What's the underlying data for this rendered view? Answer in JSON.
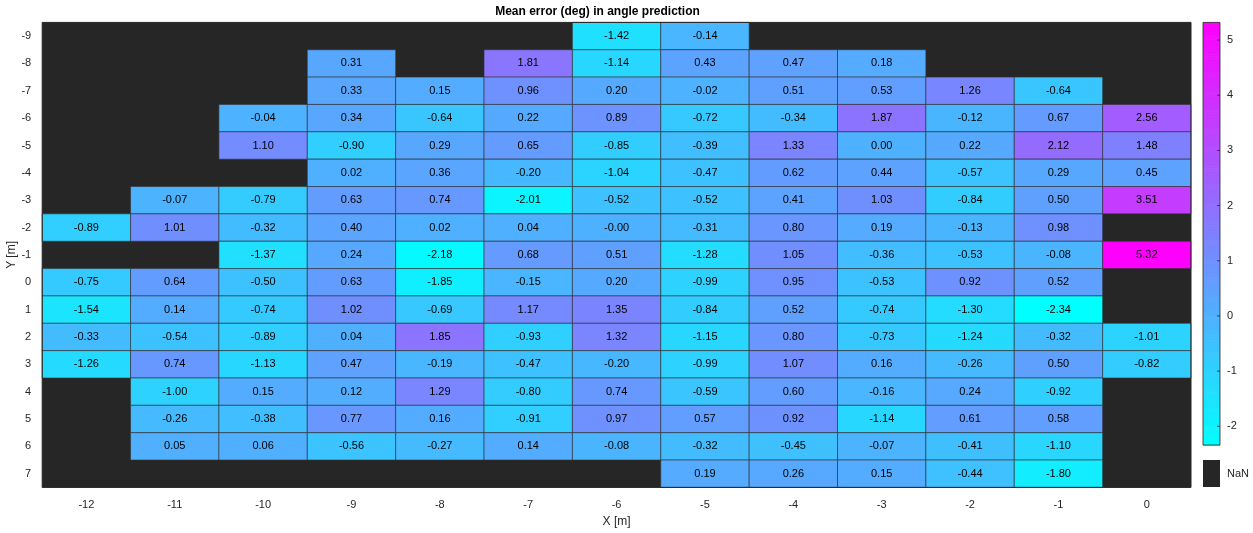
{
  "chart_data": {
    "type": "heatmap",
    "title": "Mean error (deg) in angle prediction",
    "xlabel": "X [m]",
    "ylabel": "Y [m]",
    "categories": [
      "-12",
      "-11",
      "-10",
      "-9",
      "-8",
      "-7",
      "-6",
      "-5",
      "-4",
      "-3",
      "-2",
      "-1",
      "0"
    ],
    "y_categories": [
      "-9",
      "-8",
      "-7",
      "-6",
      "-5",
      "-4",
      "-3",
      "-2",
      "-1",
      "0",
      "1",
      "2",
      "3",
      "4",
      "5",
      "6",
      "7"
    ],
    "cells": [
      [
        null,
        null,
        null,
        null,
        null,
        null,
        -1.42,
        -0.14,
        null,
        null,
        null,
        null,
        null
      ],
      [
        null,
        null,
        null,
        0.31,
        null,
        1.81,
        -1.14,
        0.43,
        0.47,
        0.18,
        null,
        null,
        null
      ],
      [
        null,
        null,
        null,
        0.33,
        0.15,
        0.96,
        0.2,
        -0.02,
        0.51,
        0.53,
        1.26,
        -0.64,
        null
      ],
      [
        null,
        null,
        -0.04,
        0.34,
        -0.64,
        0.22,
        0.89,
        -0.72,
        -0.34,
        1.87,
        -0.12,
        0.67,
        2.56
      ],
      [
        null,
        null,
        1.1,
        -0.9,
        0.29,
        0.65,
        -0.85,
        -0.39,
        1.33,
        0.0,
        0.22,
        2.12,
        1.48
      ],
      [
        null,
        null,
        null,
        0.02,
        0.36,
        -0.2,
        -1.04,
        -0.47,
        0.62,
        0.44,
        -0.57,
        0.29,
        0.45
      ],
      [
        null,
        -0.07,
        -0.79,
        0.63,
        0.74,
        -2.01,
        -0.52,
        -0.52,
        0.41,
        1.03,
        -0.84,
        0.5,
        3.51
      ],
      [
        -0.89,
        1.01,
        -0.32,
        0.4,
        0.02,
        0.04,
        -0.0,
        -0.31,
        0.8,
        0.19,
        -0.13,
        0.98,
        null
      ],
      [
        null,
        null,
        -1.37,
        0.24,
        -2.18,
        0.68,
        0.51,
        -1.28,
        1.05,
        -0.36,
        -0.53,
        -0.08,
        5.32
      ],
      [
        -0.75,
        0.64,
        -0.5,
        0.63,
        -1.85,
        -0.15,
        0.2,
        -0.99,
        0.95,
        -0.53,
        0.92,
        0.52,
        null
      ],
      [
        -1.54,
        0.14,
        -0.74,
        1.02,
        -0.69,
        1.17,
        1.35,
        -0.84,
        0.52,
        -0.74,
        -1.3,
        -2.34,
        null
      ],
      [
        -0.33,
        -0.54,
        -0.89,
        0.04,
        1.85,
        -0.93,
        1.32,
        -1.15,
        0.8,
        -0.73,
        -1.24,
        -0.32,
        -1.01
      ],
      [
        -1.26,
        0.74,
        -1.13,
        0.47,
        -0.19,
        -0.47,
        -0.2,
        -0.99,
        1.07,
        0.16,
        -0.26,
        0.5,
        -0.82
      ],
      [
        null,
        -1.0,
        0.15,
        0.12,
        1.29,
        -0.8,
        0.74,
        -0.59,
        0.6,
        -0.16,
        0.24,
        -0.92,
        null
      ],
      [
        null,
        -0.26,
        -0.38,
        0.77,
        0.16,
        -0.91,
        0.97,
        0.57,
        0.92,
        -1.14,
        0.61,
        0.58,
        null
      ],
      [
        null,
        0.05,
        0.06,
        -0.56,
        -0.27,
        0.14,
        -0.08,
        -0.32,
        -0.45,
        -0.07,
        -0.41,
        -1.1,
        null
      ],
      [
        null,
        null,
        null,
        null,
        null,
        null,
        null,
        0.19,
        0.26,
        0.15,
        -0.44,
        -1.8,
        null
      ]
    ],
    "cell_labels": [
      [
        null,
        null,
        null,
        null,
        null,
        null,
        "-1.42",
        "-0.14",
        null,
        null,
        null,
        null,
        null
      ],
      [
        null,
        null,
        null,
        "0.31",
        null,
        "1.81",
        "-1.14",
        "0.43",
        "0.47",
        "0.18",
        null,
        null,
        null
      ],
      [
        null,
        null,
        null,
        "0.33",
        "0.15",
        "0.96",
        "0.20",
        "-0.02",
        "0.51",
        "0.53",
        "1.26",
        "-0.64",
        null
      ],
      [
        null,
        null,
        "-0.04",
        "0.34",
        "-0.64",
        "0.22",
        "0.89",
        "-0.72",
        "-0.34",
        "1.87",
        "-0.12",
        "0.67",
        "2.56"
      ],
      [
        null,
        null,
        "1.10",
        "-0.90",
        "0.29",
        "0.65",
        "-0.85",
        "-0.39",
        "1.33",
        "0.00",
        "0.22",
        "2.12",
        "1.48"
      ],
      [
        null,
        null,
        null,
        "0.02",
        "0.36",
        "-0.20",
        "-1.04",
        "-0.47",
        "0.62",
        "0.44",
        "-0.57",
        "0.29",
        "0.45"
      ],
      [
        null,
        "-0.07",
        "-0.79",
        "0.63",
        "0.74",
        "-2.01",
        "-0.52",
        "-0.52",
        "0.41",
        "1.03",
        "-0.84",
        "0.50",
        "3.51"
      ],
      [
        "-0.89",
        "1.01",
        "-0.32",
        "0.40",
        "0.02",
        "0.04",
        "-0.00",
        "-0.31",
        "0.80",
        "0.19",
        "-0.13",
        "0.98",
        null
      ],
      [
        null,
        null,
        "-1.37",
        "0.24",
        "-2.18",
        "0.68",
        "0.51",
        "-1.28",
        "1.05",
        "-0.36",
        "-0.53",
        "-0.08",
        "5.32"
      ],
      [
        "-0.75",
        "0.64",
        "-0.50",
        "0.63",
        "-1.85",
        "-0.15",
        "0.20",
        "-0.99",
        "0.95",
        "-0.53",
        "0.92",
        "0.52",
        null
      ],
      [
        "-1.54",
        "0.14",
        "-0.74",
        "1.02",
        "-0.69",
        "1.17",
        "1.35",
        "-0.84",
        "0.52",
        "-0.74",
        "-1.30",
        "-2.34",
        null
      ],
      [
        "-0.33",
        "-0.54",
        "-0.89",
        "0.04",
        "1.85",
        "-0.93",
        "1.32",
        "-1.15",
        "0.80",
        "-0.73",
        "-1.24",
        "-0.32",
        "-1.01"
      ],
      [
        "-1.26",
        "0.74",
        "-1.13",
        "0.47",
        "-0.19",
        "-0.47",
        "-0.20",
        "-0.99",
        "1.07",
        "0.16",
        "-0.26",
        "0.50",
        "-0.82"
      ],
      [
        null,
        "-1.00",
        "0.15",
        "0.12",
        "1.29",
        "-0.80",
        "0.74",
        "-0.59",
        "0.60",
        "-0.16",
        "0.24",
        "-0.92",
        null
      ],
      [
        null,
        "-0.26",
        "-0.38",
        "0.77",
        "0.16",
        "-0.91",
        "0.97",
        "0.57",
        "0.92",
        "-1.14",
        "0.61",
        "0.58",
        null
      ],
      [
        null,
        "0.05",
        "0.06",
        "-0.56",
        "-0.27",
        "0.14",
        "-0.08",
        "-0.32",
        "-0.45",
        "-0.07",
        "-0.41",
        "-1.10",
        null
      ],
      [
        null,
        null,
        null,
        null,
        null,
        null,
        null,
        "0.19",
        "0.26",
        "0.15",
        "-0.44",
        "-1.80",
        null
      ]
    ],
    "clim": [
      -2.34,
      5.32
    ],
    "cticks": [
      -2,
      -1,
      0,
      1,
      2,
      3,
      4,
      5
    ],
    "annotations": [
      "NaN"
    ]
  }
}
